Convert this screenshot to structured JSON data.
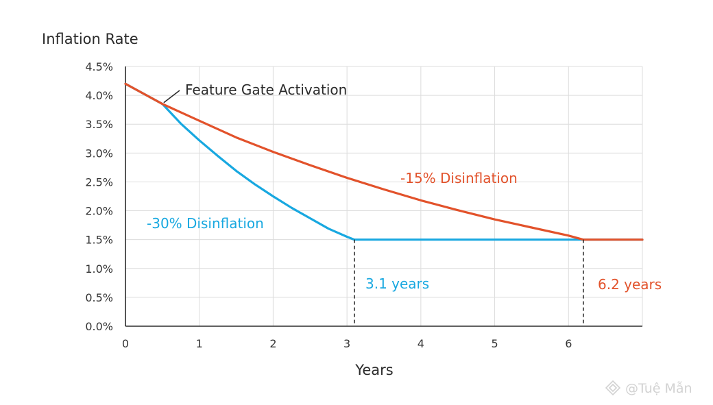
{
  "chart_data": {
    "type": "line",
    "title": "",
    "ylabel": "Inflation Rate",
    "xlabel": "Years",
    "xlim": [
      0,
      7
    ],
    "ylim": [
      0,
      4.5
    ],
    "x_ticks": [
      0,
      1,
      2,
      3,
      4,
      5,
      6
    ],
    "x_tick_labels": [
      "0",
      "1",
      "2",
      "3",
      "4",
      "5",
      "6"
    ],
    "y_ticks": [
      0,
      0.5,
      1,
      1.5,
      2,
      2.5,
      3,
      3.5,
      4,
      4.5
    ],
    "y_tick_labels": [
      "0.0%",
      "0.5%",
      "1.0%",
      "1.5%",
      "2.0%",
      "2.5%",
      "3.0%",
      "3.5%",
      "4.0%",
      "4.5%"
    ],
    "grid": true,
    "series": [
      {
        "name": "-15% Disinflation",
        "color": "#e2522b",
        "x": [
          0,
          0.5,
          1,
          1.5,
          2,
          2.5,
          3,
          3.5,
          4,
          4.5,
          5,
          5.5,
          6,
          6.2,
          7
        ],
        "y": [
          4.2,
          3.85,
          3.56,
          3.27,
          3.02,
          2.79,
          2.57,
          2.37,
          2.18,
          2.01,
          1.85,
          1.71,
          1.57,
          1.5,
          1.5
        ]
      },
      {
        "name": "-30% Disinflation",
        "color": "#18a8e0",
        "x": [
          0,
          0.5,
          0.75,
          1,
          1.25,
          1.5,
          1.75,
          2,
          2.25,
          2.5,
          2.75,
          3,
          3.1,
          7
        ],
        "y": [
          4.2,
          3.85,
          3.51,
          3.22,
          2.95,
          2.69,
          2.46,
          2.25,
          2.05,
          1.87,
          1.69,
          1.55,
          1.5,
          1.5
        ]
      }
    ],
    "annotations": [
      {
        "text": "Feature Gate Activation",
        "x": 0.5,
        "y": 3.85,
        "color": "#2b2b2b"
      },
      {
        "text": "-15% Disinflation",
        "color": "#e2522b"
      },
      {
        "text": "-30% Disinflation",
        "color": "#18a8e0"
      },
      {
        "text": "3.1 years",
        "x": 3.1,
        "color": "#18a8e0"
      },
      {
        "text": "6.2 years",
        "x": 6.2,
        "color": "#e2522b"
      }
    ],
    "watermark": "@Tuệ Mẫn"
  }
}
